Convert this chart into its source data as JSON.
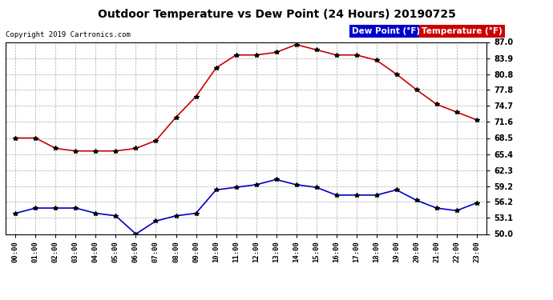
{
  "title": "Outdoor Temperature vs Dew Point (24 Hours) 20190725",
  "copyright": "Copyright 2019 Cartronics.com",
  "hours": [
    "00:00",
    "01:00",
    "02:00",
    "03:00",
    "04:00",
    "05:00",
    "06:00",
    "07:00",
    "08:00",
    "09:00",
    "10:00",
    "11:00",
    "12:00",
    "13:00",
    "14:00",
    "15:00",
    "16:00",
    "17:00",
    "18:00",
    "19:00",
    "20:00",
    "21:00",
    "22:00",
    "23:00"
  ],
  "temperature": [
    68.5,
    68.5,
    66.5,
    66.0,
    66.0,
    66.0,
    66.5,
    68.0,
    72.5,
    76.5,
    82.0,
    84.5,
    84.5,
    85.0,
    86.5,
    85.5,
    84.5,
    84.5,
    83.5,
    80.8,
    77.8,
    75.0,
    73.5,
    72.0
  ],
  "dew_point": [
    54.0,
    55.0,
    55.0,
    55.0,
    54.0,
    53.5,
    50.0,
    52.5,
    53.5,
    54.0,
    58.5,
    59.0,
    59.5,
    60.5,
    59.5,
    59.0,
    57.5,
    57.5,
    57.5,
    58.5,
    56.5,
    55.0,
    54.5,
    56.0
  ],
  "temp_color": "#cc0000",
  "dew_color": "#0000cc",
  "marker": "*",
  "bg_color": "#ffffff",
  "grid_color": "#aaaaaa",
  "ymin": 50.0,
  "ymax": 87.0,
  "yticks": [
    50.0,
    53.1,
    56.2,
    59.2,
    62.3,
    65.4,
    68.5,
    71.6,
    74.7,
    77.8,
    80.8,
    83.9,
    87.0
  ],
  "legend_dew_bg": "#0000cc",
  "legend_temp_bg": "#cc0000",
  "legend_dew_label": "Dew Point (°F)",
  "legend_temp_label": "Temperature (°F)"
}
